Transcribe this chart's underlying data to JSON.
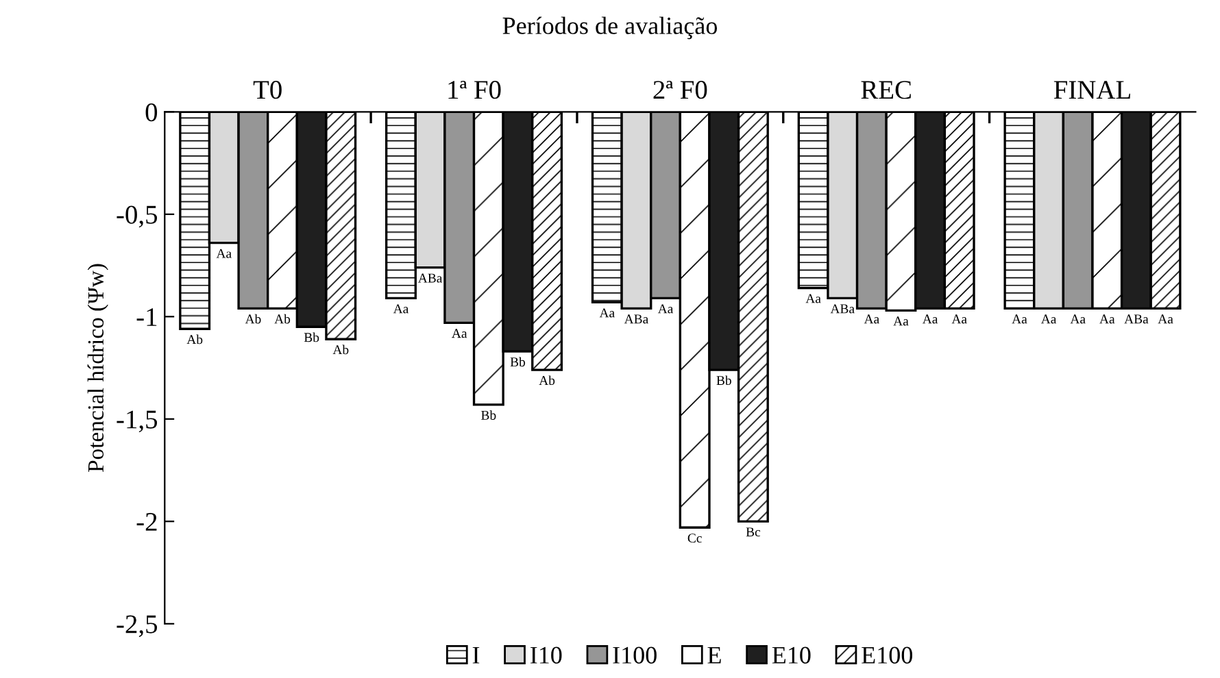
{
  "chart_data": {
    "type": "bar",
    "title": "Períodos de avaliação",
    "ylabel": "Potencial hídrico (Ψw)",
    "categories": [
      "T0",
      "1ª F0",
      "2ª F0",
      "REC",
      "FINAL"
    ],
    "series": [
      {
        "name": "I",
        "color": "#ffffff",
        "values": [
          -1.06,
          -0.91,
          -0.93,
          -0.86,
          -0.96
        ],
        "value_labels": [
          "Ab",
          "Aa",
          "Aa",
          "Aa",
          "Aa"
        ]
      },
      {
        "name": "I10",
        "color": "#d9d9d9",
        "values": [
          -0.64,
          -0.76,
          -0.96,
          -0.91,
          -0.96
        ],
        "value_labels": [
          "Aa",
          "ABa",
          "ABa",
          "ABa",
          "Aa"
        ]
      },
      {
        "name": "I100",
        "color": "#969696",
        "values": [
          -0.96,
          -1.03,
          -0.91,
          -0.96,
          -0.96
        ],
        "value_labels": [
          "Ab",
          "Aa",
          "Aa",
          "Aa",
          "Aa"
        ]
      },
      {
        "name": "E",
        "color": "#ffffff",
        "values": [
          -0.96,
          -1.43,
          -2.03,
          -0.97,
          -0.96
        ],
        "value_labels": [
          "Ab",
          "Bb",
          "Cc",
          "Aa",
          "Aa"
        ]
      },
      {
        "name": "E10",
        "color": "#1f1f1f",
        "values": [
          -1.05,
          -1.17,
          -1.26,
          -0.96,
          -0.96
        ],
        "value_labels": [
          "Bb",
          "Bb",
          "Bb",
          "Aa",
          "ABa"
        ]
      },
      {
        "name": "E100",
        "color": "#ffffff",
        "values": [
          -1.11,
          -1.26,
          -2.0,
          -0.96,
          -0.96
        ],
        "value_labels": [
          "Ab",
          "Ab",
          "Bc",
          "Aa",
          "Aa"
        ]
      }
    ],
    "ylim": [
      -2.5,
      0
    ],
    "yticks": [
      {
        "value": 0,
        "label": "0"
      },
      {
        "value": -0.5,
        "label": "-0,5"
      },
      {
        "value": -1,
        "label": "-1"
      },
      {
        "value": -1.5,
        "label": "-1,5"
      },
      {
        "value": -2,
        "label": "-2"
      },
      {
        "value": -2.5,
        "label": "-2,5"
      }
    ],
    "grid": false,
    "legend": "bottom"
  }
}
